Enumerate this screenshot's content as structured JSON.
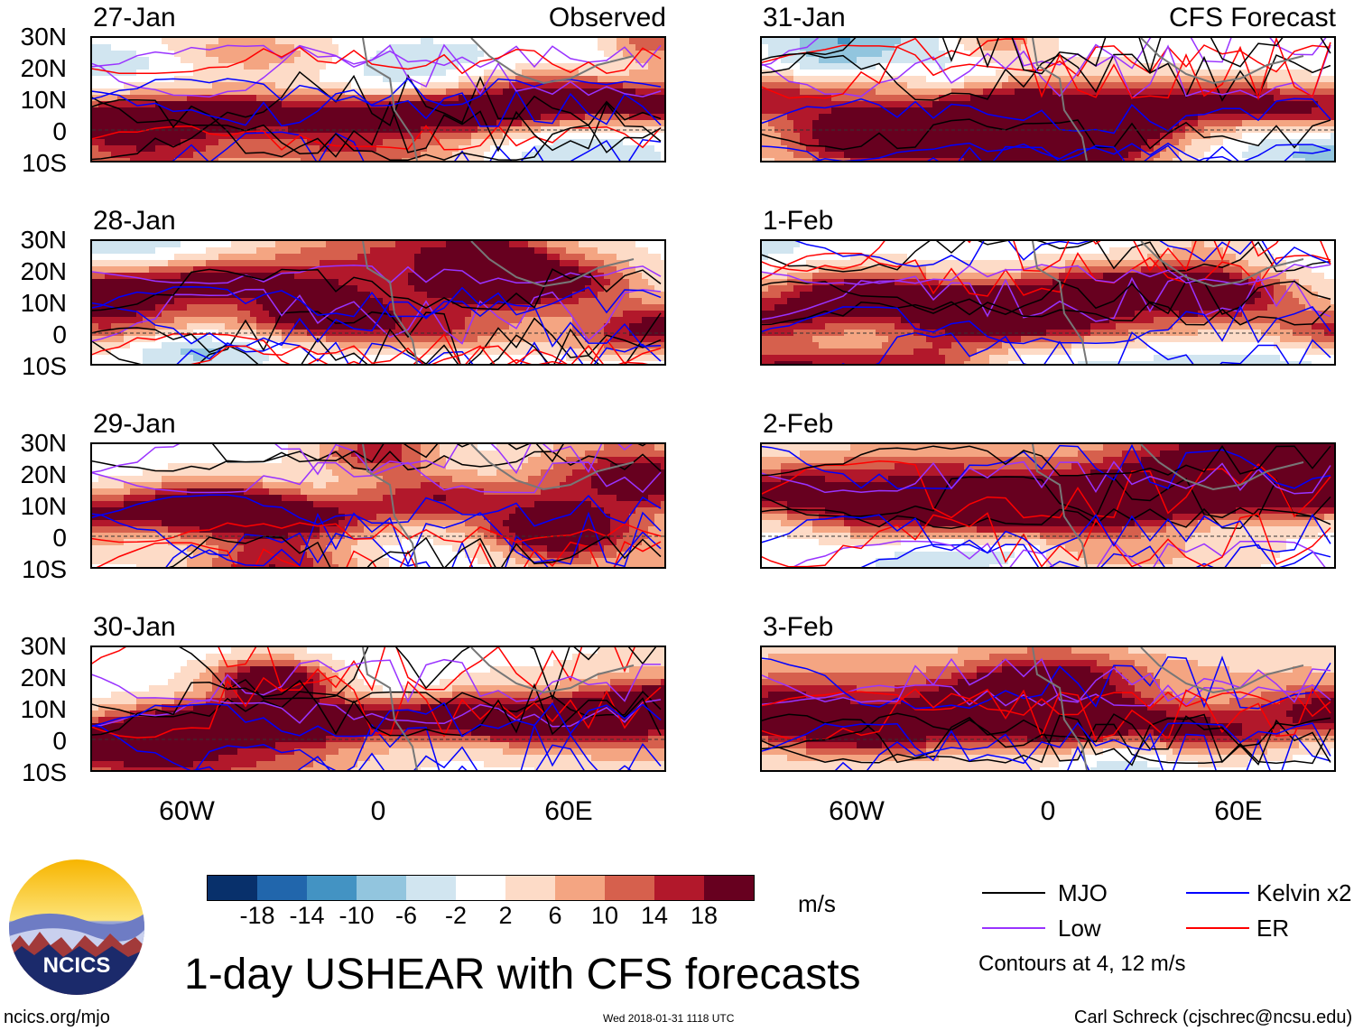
{
  "panels": {
    "observed_tag": "Observed",
    "forecast_tag": "CFS Forecast",
    "left_dates": [
      "27-Jan",
      "28-Jan",
      "29-Jan",
      "30-Jan"
    ],
    "right_dates": [
      "31-Jan",
      "1-Feb",
      "2-Feb",
      "3-Feb"
    ]
  },
  "axes": {
    "lat_labels": [
      "30N",
      "20N",
      "10N",
      "0",
      "10S"
    ],
    "lon_labels": [
      "60W",
      "0",
      "60E"
    ]
  },
  "colorbar": {
    "unit": "m/s",
    "ticks": [
      "-18",
      "-14",
      "-10",
      "-6",
      "-2",
      "2",
      "6",
      "10",
      "14",
      "18"
    ],
    "colors": [
      "#08306b",
      "#2166ac",
      "#4393c3",
      "#92c5de",
      "#d1e5f0",
      "#ffffff",
      "#fddbc7",
      "#f4a582",
      "#d6604d",
      "#b2182b",
      "#67001f"
    ]
  },
  "legend": {
    "items": [
      {
        "label": "MJO",
        "color": "#000000"
      },
      {
        "label": "Kelvin x2",
        "color": "#0000ff"
      },
      {
        "label": "Low",
        "color": "#9933ff"
      },
      {
        "label": "ER",
        "color": "#ff0000"
      }
    ],
    "note": "Contours at 4, 12 m/s"
  },
  "title": "1-day USHEAR with CFS forecasts",
  "footer": {
    "site": "ncics.org/mjo",
    "timestamp": "Wed 2018-01-31 1118 UTC",
    "credit": "Carl Schreck (cjschrec@ncsu.edu)",
    "logo_text": "NCICS"
  }
}
